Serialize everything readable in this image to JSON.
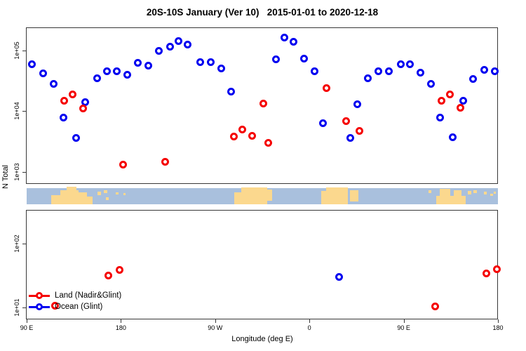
{
  "title": "20S-10S January (Ver 10)   2015-01-01 to 2020-12-18",
  "axes": {
    "x_title": "Longitude (deg E)",
    "y_title": "N Total",
    "x_ticks": [
      {
        "label": "90 E",
        "deg": 90
      },
      {
        "label": "180",
        "deg": 180
      },
      {
        "label": "90 W",
        "deg": 270
      },
      {
        "label": "0",
        "deg": 360
      },
      {
        "label": "90 E",
        "deg": 450
      },
      {
        "label": "180",
        "deg": 540
      }
    ],
    "y_ticks": [
      {
        "label": "1e+05",
        "value": 100000
      },
      {
        "label": "1e+04",
        "value": 10000
      },
      {
        "label": "1e+03",
        "value": 1000
      },
      {
        "label": "1e+02",
        "value": 100
      },
      {
        "label": "1e+01",
        "value": 10
      }
    ]
  },
  "legend": {
    "items": [
      {
        "label": "Land (Nadir&Glint)",
        "color": "#f50000"
      },
      {
        "label": "Ocean (Glint)",
        "color": "#0000f0"
      }
    ]
  },
  "chart_data": {
    "type": "scatter",
    "title": "20S-10S January (Ver 10)   2015-01-01 to 2020-12-18",
    "xlabel": "Longitude (deg E)",
    "ylabel": "N Total",
    "x_axis": {
      "range_deg_continuous": [
        90,
        540
      ],
      "tick_labels": [
        "90 E",
        "180",
        "90 W",
        "0",
        "90 E",
        "180"
      ]
    },
    "y_axis": {
      "scale": "log10",
      "upper_panel_range": [
        630,
        200000
      ],
      "lower_panel_range": [
        8,
        330
      ]
    },
    "note": "broken log y-axis; a 20S-10S latitude world-map strip separates the two panels",
    "series": [
      {
        "name": "Ocean (Glint)",
        "color": "#0000f0",
        "points": [
          [
            95,
            60000
          ],
          [
            106,
            42000
          ],
          [
            116,
            28000
          ],
          [
            125,
            7900
          ],
          [
            137,
            3600
          ],
          [
            146,
            14000
          ],
          [
            157,
            35000
          ],
          [
            167,
            46000
          ],
          [
            176,
            45000
          ],
          [
            186,
            40000
          ],
          [
            196,
            63000
          ],
          [
            206,
            57000
          ],
          [
            216,
            98000
          ],
          [
            227,
            115000
          ],
          [
            235,
            145000
          ],
          [
            244,
            127000
          ],
          [
            256,
            65000
          ],
          [
            266,
            64000
          ],
          [
            276,
            51000
          ],
          [
            285,
            21000
          ],
          [
            328,
            72000
          ],
          [
            336,
            162000
          ],
          [
            345,
            140000
          ],
          [
            355,
            74000
          ],
          [
            365,
            45000
          ],
          [
            373,
            6400
          ],
          [
            399,
            3600
          ],
          [
            406,
            13000
          ],
          [
            416,
            35000
          ],
          [
            426,
            45000
          ],
          [
            436,
            46000
          ],
          [
            447,
            59000
          ],
          [
            456,
            60000
          ],
          [
            466,
            43000
          ],
          [
            476,
            28000
          ],
          [
            485,
            7800
          ],
          [
            497,
            3700
          ],
          [
            507,
            15000
          ],
          [
            516,
            34000
          ],
          [
            527,
            48000
          ],
          [
            537,
            46000
          ],
          [
            388,
            30
          ]
        ]
      },
      {
        "name": "Land (Nadir&Glint)",
        "color": "#f50000",
        "points": [
          [
            126,
            14700
          ],
          [
            134,
            18700
          ],
          [
            144,
            11200
          ],
          [
            182,
            1300
          ],
          [
            222,
            1450
          ],
          [
            288,
            3800
          ],
          [
            296,
            5000
          ],
          [
            305,
            3900
          ],
          [
            316,
            13500
          ],
          [
            321,
            3000
          ],
          [
            376,
            24000
          ],
          [
            395,
            6800
          ],
          [
            408,
            4700
          ],
          [
            486,
            15000
          ],
          [
            494,
            19000
          ],
          [
            504,
            11500
          ],
          [
            117,
            10.7
          ],
          [
            168,
            32
          ],
          [
            179,
            39
          ],
          [
            480,
            10.5
          ],
          [
            529,
            34
          ],
          [
            539,
            40
          ]
        ]
      }
    ]
  },
  "map": {
    "ocean_color": "#a9c0dd",
    "land_color": "#fbd88e",
    "land_patches": [
      [
        35,
        14,
        15,
        13
      ],
      [
        48,
        7,
        26,
        20
      ],
      [
        57,
        2,
        14,
        25
      ],
      [
        74,
        10,
        12,
        17
      ],
      [
        86,
        16,
        8,
        11
      ],
      [
        101,
        9,
        5,
        5
      ],
      [
        110,
        7,
        5,
        4
      ],
      [
        113,
        17,
        4,
        4
      ],
      [
        127,
        10,
        4,
        3
      ],
      [
        138,
        11,
        3,
        3
      ],
      [
        296,
        10,
        11,
        17
      ],
      [
        306,
        3,
        37,
        24
      ],
      [
        342,
        6,
        8,
        16
      ],
      [
        420,
        8,
        9,
        19
      ],
      [
        427,
        3,
        31,
        24
      ],
      [
        461,
        7,
        12,
        16
      ],
      [
        573,
        7,
        4,
        4
      ],
      [
        584,
        15,
        42,
        12
      ],
      [
        589,
        5,
        15,
        22
      ],
      [
        609,
        7,
        11,
        20
      ],
      [
        629,
        8,
        5,
        5
      ],
      [
        637,
        7,
        5,
        4
      ],
      [
        652,
        9,
        4,
        4
      ],
      [
        661,
        12,
        4,
        3
      ],
      [
        666,
        9,
        3,
        3
      ]
    ]
  }
}
